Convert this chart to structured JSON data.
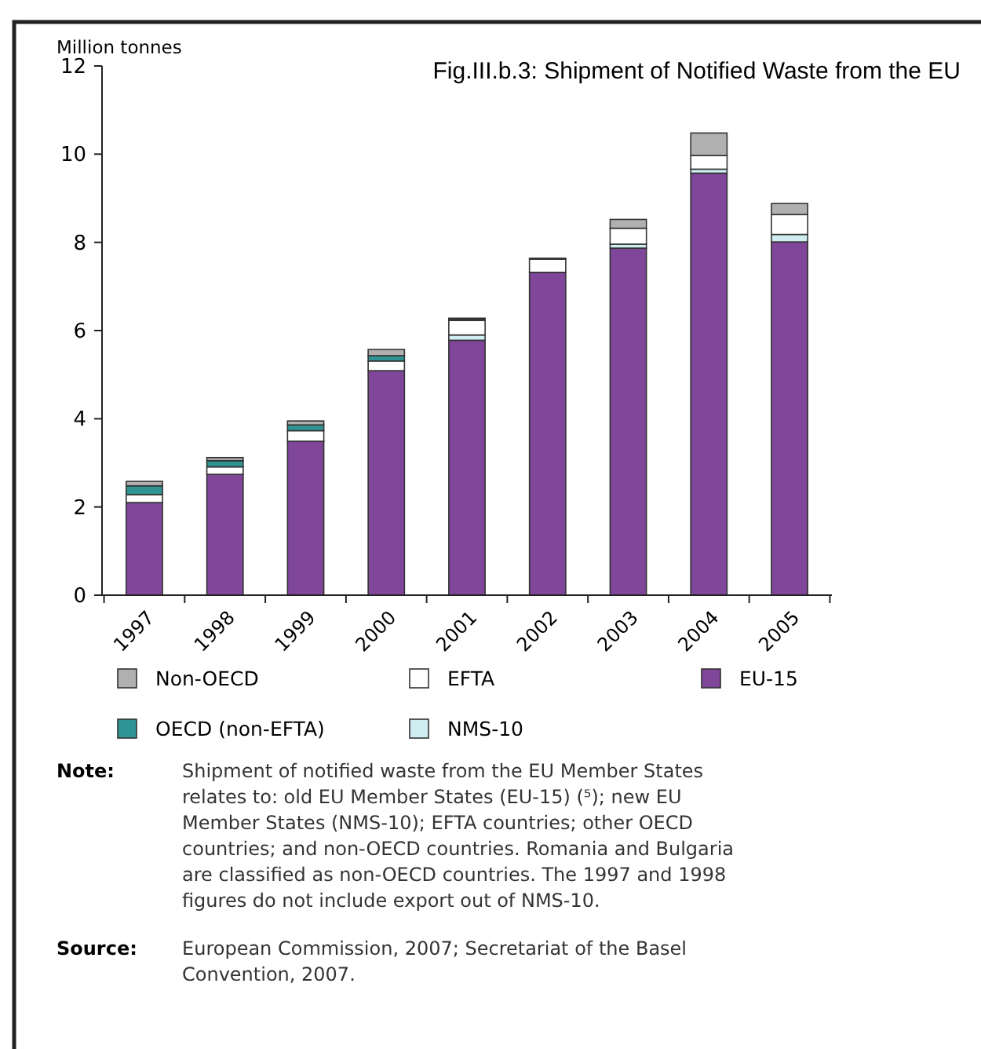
{
  "chart_data": {
    "type": "bar",
    "stacked": true,
    "title": "Fig.III.b.3: Shipment of Notified Waste from the EU",
    "ylabel": "Million tonnes",
    "categories": [
      "1997",
      "1998",
      "1999",
      "2000",
      "2001",
      "2002",
      "2003",
      "2004",
      "2005"
    ],
    "series": [
      {
        "name": "EU-15",
        "color": "#7f4699",
        "values": [
          2.1,
          2.74,
          3.49,
          5.09,
          5.78,
          7.32,
          7.87,
          9.57,
          8.01
        ]
      },
      {
        "name": "NMS-10",
        "color": "#d0eef2",
        "values": [
          0,
          0,
          0,
          null,
          0.12,
          null,
          0.09,
          0.09,
          0.17
        ]
      },
      {
        "name": "EFTA",
        "color": "#ffffff",
        "values": [
          0.18,
          0.17,
          0.24,
          0.22,
          0.33,
          0.3,
          0.36,
          0.31,
          0.45
        ]
      },
      {
        "name": "OECD (non-EFTA)",
        "color": "#2e9494",
        "values": [
          0.2,
          0.14,
          0.13,
          0.12,
          0.03,
          0.02,
          null,
          0,
          0
        ]
      },
      {
        "name": "Non-OECD",
        "color": "#b0b0b0",
        "values": [
          0.1,
          0.07,
          0.09,
          0.14,
          0.02,
          0,
          0.2,
          0.51,
          0.25
        ]
      }
    ],
    "ylim": [
      0,
      12
    ],
    "yticks": [
      0,
      2,
      4,
      6,
      8,
      10,
      12
    ],
    "grid": false,
    "legend": "bottom",
    "annotations": [
      "Note: Shipment of notified waste from the EU Member States relates to: old EU Member States (EU-15) (⁵); new EU Member States (NMS-10); EFTA countries; other OECD countries; and non-OECD countries. Romania and Bulgaria are classified as non-OECD countries. The 1997 and 1998 figures do not include export out of NMS-10.",
      "Source: European Commission, 2007; Secretariat of the Basel Convention, 2007."
    ]
  }
}
